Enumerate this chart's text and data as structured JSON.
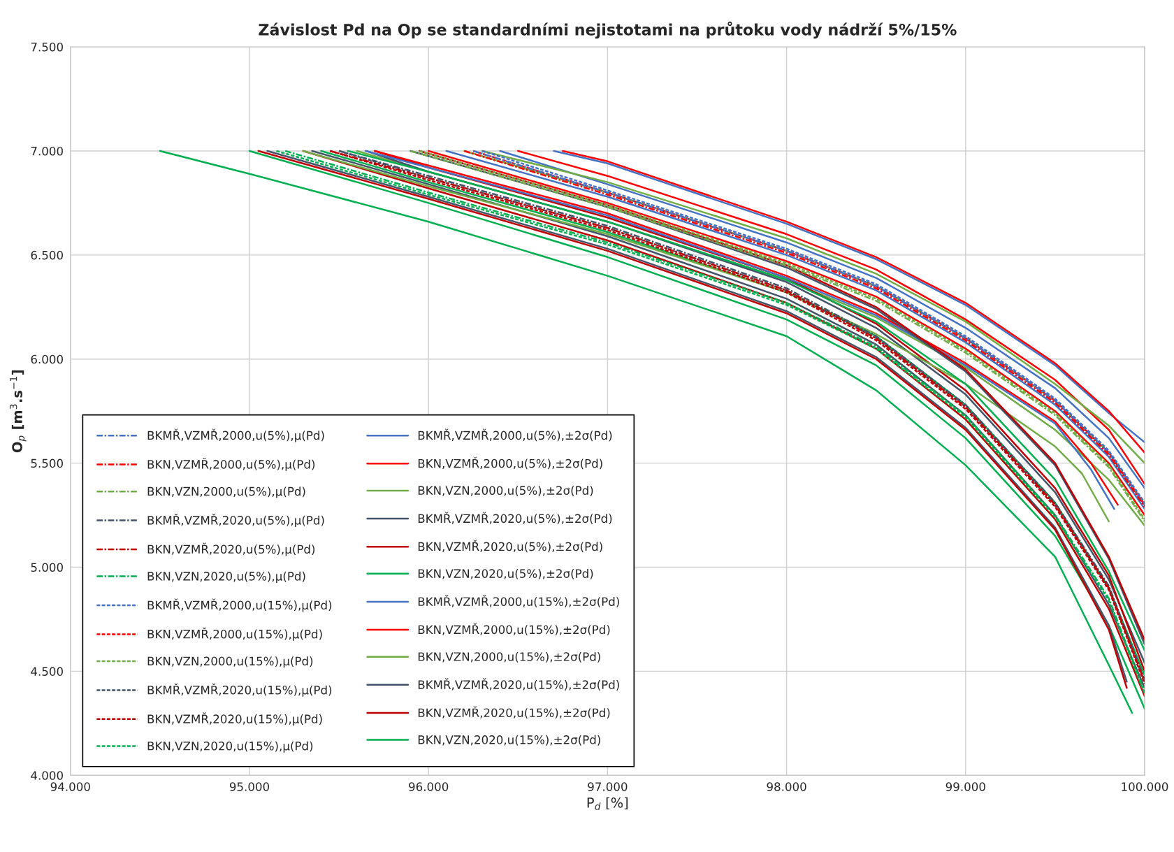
{
  "chart_data": {
    "type": "line",
    "title": "Závislost Pd na Op se standardními nejistotami na průtoku vody nádrží 5%/15%",
    "xlabel": "P$_{d}$ [%]",
    "ylabel": "O$_{p}$ [m$^{3}$.s$^{−1}$]",
    "xlim": [
      94,
      100
    ],
    "ylim": [
      4,
      7.5
    ],
    "xticks": [
      {
        "value": 94,
        "label": "94.000"
      },
      {
        "value": 95,
        "label": "95.000"
      },
      {
        "value": 96,
        "label": "96.000"
      },
      {
        "value": 97,
        "label": "97.000"
      },
      {
        "value": 98,
        "label": "98.000"
      },
      {
        "value": 99,
        "label": "99.000"
      },
      {
        "value": 100,
        "label": "100.000"
      }
    ],
    "yticks": [
      {
        "value": 4,
        "label": "4.000"
      },
      {
        "value": 4.5,
        "label": "4.500"
      },
      {
        "value": 5,
        "label": "5.000"
      },
      {
        "value": 5.5,
        "label": "5.500"
      },
      {
        "value": 6,
        "label": "6.000"
      },
      {
        "value": 6.5,
        "label": "6.500"
      },
      {
        "value": 7,
        "label": "7.000"
      },
      {
        "value": 7.5,
        "label": "7.500"
      }
    ],
    "grid": true,
    "legend": "bottom left",
    "marker": "none",
    "series": [
      {
        "name": "BKMŘ,VZMŘ,2000,u(5%),µ(Pd)",
        "color": "#4472c4",
        "line_style": "dashdot",
        "x": [
          96.25,
          97,
          98,
          98.5,
          99,
          99.5,
          99.8,
          100
        ],
        "values": [
          7.0,
          6.8,
          6.52,
          6.35,
          6.1,
          5.8,
          5.55,
          5.3
        ]
      },
      {
        "name": "BKN,VZMŘ,2000,u(5%),µ(Pd)",
        "color": "#ff0000",
        "line_style": "dashdot",
        "x": [
          96.2,
          97,
          98,
          98.5,
          99,
          99.5,
          99.8,
          100
        ],
        "values": [
          7.0,
          6.79,
          6.51,
          6.34,
          6.09,
          5.79,
          5.54,
          5.29
        ]
      },
      {
        "name": "BKN,VZN,2000,u(5%),µ(Pd)",
        "color": "#70ad47",
        "line_style": "dashdot",
        "x": [
          95.9,
          97,
          98,
          98.5,
          99,
          99.5,
          99.8,
          100
        ],
        "values": [
          7.0,
          6.73,
          6.45,
          6.28,
          6.03,
          5.73,
          5.48,
          5.22
        ]
      },
      {
        "name": "BKMŘ,VZMŘ,2020,u(5%),µ(Pd)",
        "color": "#44546a",
        "line_style": "dashdot",
        "x": [
          95.5,
          96,
          97,
          98,
          98.5,
          99,
          99.5,
          99.8,
          100
        ],
        "values": [
          7.0,
          6.88,
          6.64,
          6.34,
          6.11,
          5.78,
          5.31,
          4.91,
          4.46
        ]
      },
      {
        "name": "BKN,VZMŘ,2020,u(5%),µ(Pd)",
        "color": "#c00000",
        "line_style": "dashdot",
        "x": [
          95.45,
          96,
          97,
          98,
          98.5,
          99,
          99.5,
          99.8,
          100
        ],
        "values": [
          7.0,
          6.87,
          6.63,
          6.33,
          6.1,
          5.77,
          5.3,
          4.9,
          4.45
        ]
      },
      {
        "name": "BKN,VZN,2020,u(5%),µ(Pd)",
        "color": "#00b050",
        "line_style": "dashdot",
        "x": [
          95.2,
          96,
          97,
          98,
          98.5,
          99,
          99.5,
          99.8,
          100
        ],
        "values": [
          7.0,
          6.8,
          6.56,
          6.27,
          6.06,
          5.73,
          5.25,
          4.85,
          4.4
        ]
      },
      {
        "name": "BKMŘ,VZMŘ,2000,u(15%),µ(Pd)",
        "color": "#4472c4",
        "line_style": "dashed",
        "x": [
          96.3,
          97,
          98,
          98.5,
          99,
          99.5,
          99.8,
          100
        ],
        "values": [
          7.0,
          6.81,
          6.53,
          6.36,
          6.11,
          5.81,
          5.56,
          5.31
        ]
      },
      {
        "name": "BKN,VZMŘ,2000,u(15%),µ(Pd)",
        "color": "#ff0000",
        "line_style": "dashed",
        "x": [
          96.25,
          97,
          98,
          98.5,
          99,
          99.5,
          99.8,
          100
        ],
        "values": [
          7.0,
          6.8,
          6.52,
          6.35,
          6.1,
          5.8,
          5.55,
          5.3
        ]
      },
      {
        "name": "BKN,VZN,2000,u(15%),µ(Pd)",
        "color": "#70ad47",
        "line_style": "dashed",
        "x": [
          95.95,
          97,
          98,
          98.5,
          99,
          99.5,
          99.8,
          100
        ],
        "values": [
          7.0,
          6.74,
          6.46,
          6.29,
          6.04,
          5.74,
          5.49,
          5.23
        ]
      },
      {
        "name": "BKMŘ,VZMŘ,2020,u(15%),µ(Pd)",
        "color": "#44546a",
        "line_style": "dashed",
        "x": [
          95.5,
          96,
          97,
          98,
          98.5,
          99,
          99.5,
          99.8,
          100
        ],
        "values": [
          7.0,
          6.87,
          6.63,
          6.33,
          6.1,
          5.77,
          5.3,
          4.9,
          4.45
        ]
      },
      {
        "name": "BKN,VZMŘ,2020,u(15%),µ(Pd)",
        "color": "#c00000",
        "line_style": "dashed",
        "x": [
          95.45,
          96,
          97,
          98,
          98.5,
          99,
          99.5,
          99.8,
          100
        ],
        "values": [
          7.0,
          6.86,
          6.62,
          6.32,
          6.09,
          5.76,
          5.29,
          4.89,
          4.44
        ]
      },
      {
        "name": "BKN,VZN,2020,u(15%),µ(Pd)",
        "color": "#00b050",
        "line_style": "dashed",
        "x": [
          95.15,
          96,
          97,
          98,
          98.5,
          99,
          99.5,
          99.8,
          100
        ],
        "values": [
          7.0,
          6.79,
          6.55,
          6.26,
          6.05,
          5.72,
          5.24,
          4.84,
          4.39
        ]
      },
      {
        "name": "BKMŘ,VZMŘ,2000,u(5%),±2σ(Pd)",
        "color": "#4472c4",
        "line_style": "solid",
        "x": [
          96.4,
          97,
          98,
          98.5,
          99,
          99.5,
          99.8,
          100
        ],
        "values": [
          7.0,
          6.84,
          6.56,
          6.39,
          6.15,
          5.86,
          5.62,
          5.38
        ]
      },
      {
        "color": "#4472c4",
        "line_style": "solid",
        "x": [
          96.1,
          97,
          98,
          98.5,
          99,
          99.5,
          99.8,
          100
        ],
        "values": [
          7.0,
          6.78,
          6.5,
          6.33,
          6.08,
          5.78,
          5.53,
          5.28
        ]
      },
      {
        "name": "BKN,VZMŘ,2000,u(5%),±2σ(Pd)",
        "color": "#ff0000",
        "line_style": "solid",
        "x": [
          96.5,
          97,
          98,
          98.5,
          99,
          99.5,
          99.8,
          100
        ],
        "values": [
          7.0,
          6.88,
          6.6,
          6.43,
          6.19,
          5.9,
          5.66,
          5.4
        ]
      },
      {
        "color": "#ff0000",
        "line_style": "solid",
        "x": [
          96.0,
          97,
          98,
          98.5,
          99,
          99.5,
          99.8,
          100
        ],
        "values": [
          7.0,
          6.75,
          6.47,
          6.3,
          6.05,
          5.75,
          5.5,
          5.25
        ]
      },
      {
        "name": "BKN,VZN,2000,u(5%),±2σ(Pd)",
        "color": "#70ad47",
        "line_style": "solid",
        "x": [
          96.2,
          97,
          98,
          98.5,
          99,
          99.5,
          99.8,
          100
        ],
        "values": [
          7.0,
          6.8,
          6.52,
          6.35,
          6.1,
          5.8,
          5.55,
          5.3
        ]
      },
      {
        "color": "#70ad47",
        "line_style": "solid",
        "x": [
          95.6,
          96,
          97,
          98,
          98.5,
          99,
          99.5,
          99.8,
          100
        ],
        "values": [
          7.0,
          6.9,
          6.66,
          6.38,
          6.2,
          5.96,
          5.66,
          5.42,
          5.2
        ]
      },
      {
        "name": "BKMŘ,VZMŘ,2020,u(5%),±2σ(Pd)",
        "color": "#44546a",
        "line_style": "solid",
        "x": [
          95.65,
          96,
          97,
          98,
          98.5,
          99,
          99.5,
          99.8,
          100
        ],
        "values": [
          7.0,
          6.9,
          6.66,
          6.37,
          6.15,
          5.83,
          5.36,
          4.94,
          4.54
        ]
      },
      {
        "color": "#44546a",
        "line_style": "solid",
        "x": [
          95.35,
          96,
          97,
          98,
          98.5,
          99,
          99.5,
          99.8,
          100
        ],
        "values": [
          7.0,
          6.84,
          6.59,
          6.29,
          6.07,
          5.73,
          5.25,
          4.82,
          4.42
        ]
      },
      {
        "name": "BKN,VZMŘ,2020,u(5%),±2σ(Pd)",
        "color": "#c00000",
        "line_style": "solid",
        "x": [
          95.7,
          96,
          97,
          98,
          98.5,
          99,
          99.5,
          99.8,
          100
        ],
        "values": [
          7.0,
          6.92,
          6.68,
          6.39,
          6.17,
          5.85,
          5.38,
          4.96,
          4.5
        ]
      },
      {
        "color": "#c00000",
        "line_style": "solid",
        "x": [
          95.3,
          96,
          97,
          98,
          98.5,
          99,
          99.5,
          99.8,
          100
        ],
        "values": [
          7.0,
          6.82,
          6.57,
          6.27,
          6.05,
          5.71,
          5.23,
          4.8,
          4.38
        ]
      },
      {
        "name": "BKN,VZN,2020,u(5%),±2σ(Pd)",
        "color": "#00b050",
        "line_style": "solid",
        "x": [
          95.4,
          96,
          97,
          98,
          98.5,
          99,
          99.5,
          99.8,
          100
        ],
        "values": [
          7.0,
          6.85,
          6.61,
          6.32,
          6.11,
          5.78,
          5.31,
          4.9,
          4.48
        ]
      },
      {
        "color": "#00b050",
        "line_style": "solid",
        "x": [
          95.0,
          96,
          97,
          98,
          98.5,
          99,
          99.5,
          99.8,
          100
        ],
        "values": [
          7.0,
          6.75,
          6.49,
          6.19,
          5.97,
          5.62,
          5.15,
          4.72,
          4.32
        ]
      },
      {
        "name": "BKMŘ,VZMŘ,2000,u(15%),±2σ(Pd)",
        "color": "#4472c4",
        "line_style": "solid",
        "x": [
          96.7,
          97,
          98,
          98.5,
          99,
          99.5,
          99.8,
          100
        ],
        "values": [
          7.0,
          6.94,
          6.65,
          6.48,
          6.26,
          5.97,
          5.74,
          5.6
        ]
      },
      {
        "color": "#4472c4",
        "line_style": "solid",
        "x": [
          95.65,
          96,
          97,
          98,
          98.5,
          99,
          99.5,
          99.7,
          99.83
        ],
        "values": [
          7.0,
          6.92,
          6.69,
          6.39,
          6.21,
          5.97,
          5.69,
          5.47,
          5.28
        ]
      },
      {
        "name": "BKN,VZMŘ,2000,u(15%),±2σ(Pd)",
        "color": "#ff0000",
        "line_style": "solid",
        "x": [
          96.75,
          97,
          98,
          98.5,
          99,
          99.5,
          99.8,
          100
        ],
        "values": [
          7.0,
          6.95,
          6.66,
          6.49,
          6.27,
          5.98,
          5.75,
          5.55
        ]
      },
      {
        "color": "#ff0000",
        "line_style": "solid",
        "x": [
          95.7,
          96,
          97,
          98,
          98.5,
          99,
          99.5,
          99.7,
          99.85
        ],
        "values": [
          7.0,
          6.93,
          6.7,
          6.4,
          6.22,
          5.98,
          5.7,
          5.5,
          5.3
        ]
      },
      {
        "name": "BKN,VZN,2000,u(15%),±2σ(Pd)",
        "color": "#70ad47",
        "line_style": "solid",
        "x": [
          96.3,
          97,
          98,
          98.5,
          99,
          99.5,
          99.8,
          100
        ],
        "values": [
          7.0,
          6.85,
          6.58,
          6.41,
          6.18,
          5.88,
          5.68,
          5.5
        ]
      },
      {
        "color": "#70ad47",
        "line_style": "solid",
        "x": [
          95.3,
          96,
          97,
          98,
          98.5,
          99,
          99.5,
          99.65,
          99.8
        ],
        "values": [
          7.0,
          6.83,
          6.6,
          6.32,
          6.12,
          5.88,
          5.58,
          5.45,
          5.22
        ]
      },
      {
        "name": "BKMŘ,VZMŘ,2020,u(15%),±2σ(Pd)",
        "color": "#44546a",
        "line_style": "solid",
        "x": [
          95.9,
          97,
          98,
          98.5,
          99,
          99.5,
          99.8,
          100
        ],
        "values": [
          7.0,
          6.73,
          6.44,
          6.24,
          5.94,
          5.49,
          5.04,
          4.63
        ]
      },
      {
        "color": "#44546a",
        "line_style": "solid",
        "x": [
          95.1,
          96,
          97,
          98,
          98.5,
          99,
          99.5,
          99.8,
          99.9
        ],
        "values": [
          7.0,
          6.78,
          6.53,
          6.23,
          6.01,
          5.67,
          5.19,
          4.72,
          4.45
        ]
      },
      {
        "name": "BKN,VZMŘ,2020,u(15%),±2σ(Pd)",
        "color": "#c00000",
        "line_style": "solid",
        "x": [
          95.95,
          97,
          98,
          98.5,
          99,
          99.5,
          99.8,
          100
        ],
        "values": [
          7.0,
          6.74,
          6.45,
          6.25,
          5.95,
          5.5,
          5.05,
          4.65
        ]
      },
      {
        "color": "#c00000",
        "line_style": "solid",
        "x": [
          95.05,
          96,
          97,
          98,
          98.5,
          99,
          99.5,
          99.8,
          99.9
        ],
        "values": [
          7.0,
          6.77,
          6.52,
          6.22,
          6.0,
          5.66,
          5.18,
          4.7,
          4.42
        ]
      },
      {
        "name": "BKN,VZN,2020,u(15%),±2σ(Pd)",
        "color": "#00b050",
        "line_style": "solid",
        "x": [
          95.55,
          96,
          97,
          98,
          98.5,
          99,
          99.5,
          99.8,
          100
        ],
        "values": [
          7.0,
          6.9,
          6.66,
          6.38,
          6.18,
          5.88,
          5.42,
          4.98,
          4.6
        ]
      },
      {
        "color": "#00b050",
        "line_style": "solid",
        "x": [
          94.5,
          95,
          96,
          97,
          98,
          98.5,
          99,
          99.5,
          99.8,
          99.93
        ],
        "values": [
          7.0,
          6.89,
          6.66,
          6.4,
          6.11,
          5.85,
          5.49,
          5.05,
          4.53,
          4.3
        ]
      }
    ]
  }
}
